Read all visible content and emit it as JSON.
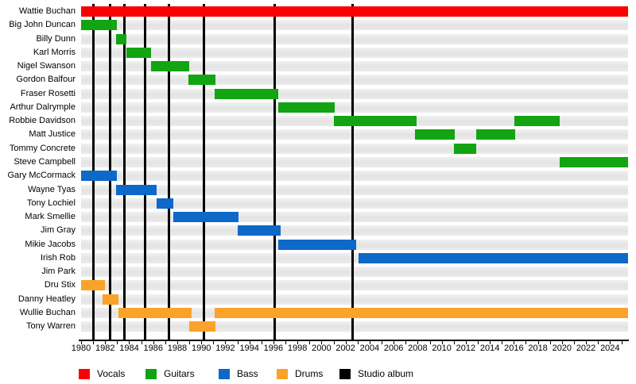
{
  "chart_data": {
    "type": "bar",
    "subtype": "band-member-gantt-timeline",
    "title": "",
    "xlabel": "",
    "ylabel": "",
    "grid": false,
    "legend_position": "bottom",
    "x_axis": {
      "start": 1980,
      "end": 2025.5,
      "minor_tick_step": 1,
      "label_tick_step": 2,
      "tick_labels": [
        "1980",
        "1982",
        "1984",
        "1986",
        "1988",
        "1990",
        "1992",
        "1994",
        "1996",
        "1998",
        "2000",
        "2002",
        "2004",
        "2006",
        "2008",
        "2010",
        "2012",
        "2014",
        "2016",
        "2018",
        "2020",
        "2022",
        "2024"
      ]
    },
    "legend": [
      {
        "key": "vocals",
        "label": "Vocals",
        "color": "#fb0000"
      },
      {
        "key": "guitars",
        "label": "Guitars",
        "color": "#12a412"
      },
      {
        "key": "bass",
        "label": "Bass",
        "color": "#0e68c8"
      },
      {
        "key": "drums",
        "label": "Drums",
        "color": "#faa22a"
      },
      {
        "key": "album",
        "label": "Studio album",
        "color": "#000000"
      }
    ],
    "album_release_years": [
      1981.05,
      1982.4,
      1983.6,
      1985.3,
      1987.3,
      1990.25,
      1996.1,
      2002.6
    ],
    "members": [
      {
        "name": "Wattie Buchan",
        "role": "vocals",
        "stints": [
          [
            1980,
            2025.5
          ]
        ]
      },
      {
        "name": "Big John Duncan",
        "role": "guitars",
        "stints": [
          [
            1980,
            1983
          ]
        ]
      },
      {
        "name": "Billy Dunn",
        "role": "guitars",
        "stints": [
          [
            1982.9,
            1983.8
          ]
        ]
      },
      {
        "name": "Karl Morris",
        "role": "guitars",
        "stints": [
          [
            1983.8,
            1985.8
          ]
        ]
      },
      {
        "name": "Nigel Swanson",
        "role": "guitars",
        "stints": [
          [
            1985.8,
            1989
          ]
        ]
      },
      {
        "name": "Gordon Balfour",
        "role": "guitars",
        "stints": [
          [
            1988.9,
            1991.2
          ]
        ]
      },
      {
        "name": "Fraser Rosetti",
        "role": "guitars",
        "stints": [
          [
            1991.1,
            1996.4
          ]
        ]
      },
      {
        "name": "Arthur Dalrymple",
        "role": "guitars",
        "stints": [
          [
            1996.4,
            2001.1
          ]
        ]
      },
      {
        "name": "Robbie Davidson",
        "role": "guitars",
        "stints": [
          [
            2001,
            2007.9
          ],
          [
            2016.05,
            2019.8
          ]
        ]
      },
      {
        "name": "Matt Justice",
        "role": "guitars",
        "stints": [
          [
            2007.8,
            2011.05
          ],
          [
            2012.85,
            2016.1
          ]
        ]
      },
      {
        "name": "Tommy Concrete",
        "role": "guitars",
        "stints": [
          [
            2011,
            2012.9
          ]
        ]
      },
      {
        "name": "Steve Campbell",
        "role": "guitars",
        "stints": [
          [
            2019.8,
            2025.5
          ]
        ]
      },
      {
        "name": "Gary McCormack",
        "role": "bass",
        "stints": [
          [
            1980,
            1983
          ]
        ]
      },
      {
        "name": "Wayne Tyas",
        "role": "bass",
        "stints": [
          [
            1982.9,
            1986.3
          ]
        ]
      },
      {
        "name": "Tony Lochiel",
        "role": "bass",
        "stints": [
          [
            1986.3,
            1987.7
          ]
        ]
      },
      {
        "name": "Mark Smellie",
        "role": "bass",
        "stints": [
          [
            1987.7,
            1993.1
          ]
        ]
      },
      {
        "name": "Jim Gray",
        "role": "bass",
        "stints": [
          [
            1993,
            1996.6
          ]
        ]
      },
      {
        "name": "Mikie Jacobs",
        "role": "bass",
        "stints": [
          [
            1996.4,
            2002.9
          ]
        ]
      },
      {
        "name": "Irish Rob",
        "role": "bass",
        "stints": [
          [
            2003.05,
            2025.5
          ]
        ]
      },
      {
        "name": "Jim Park",
        "role": "bass",
        "stints": []
      },
      {
        "name": "Dru Stix",
        "role": "drums",
        "stints": [
          [
            1980,
            1982
          ]
        ]
      },
      {
        "name": "Danny Heatley",
        "role": "drums",
        "stints": [
          [
            1981.8,
            1983.1
          ]
        ]
      },
      {
        "name": "Wullie Buchan",
        "role": "drums",
        "stints": [
          [
            1983.1,
            1989.2
          ],
          [
            1991.1,
            2025.5
          ]
        ]
      },
      {
        "name": "Tony Warren",
        "role": "drums",
        "stints": [
          [
            1989,
            1991.2
          ]
        ]
      }
    ]
  }
}
